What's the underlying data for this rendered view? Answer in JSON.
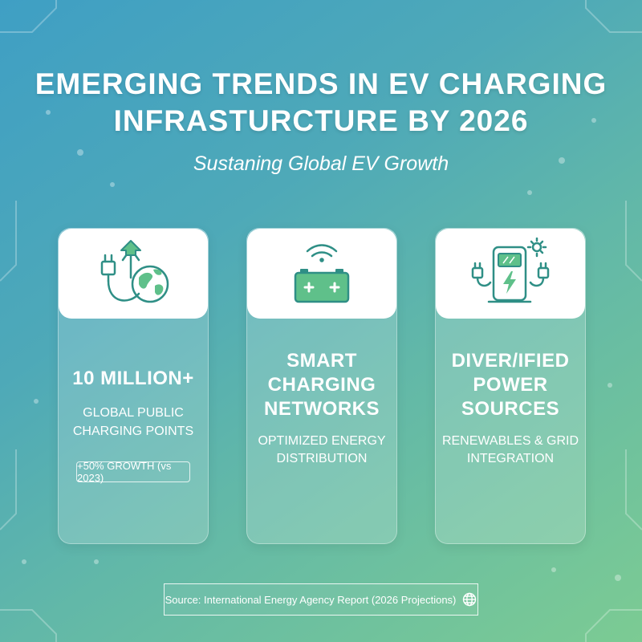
{
  "header": {
    "title_line1": "EMERGING TRENDS IN EV CHARGING",
    "title_line2": "INFRASTURCTURE BY 2026",
    "subtitle": "Sustaning Global EV Growth"
  },
  "cards": [
    {
      "icon": "plug-globe-arrow-icon",
      "headline": "10 MILLION+",
      "label_line1": "GLOBAL PUBLIC",
      "label_line2": "CHARGING POINTS",
      "badge": "+50% GROWTH (vs 2023)"
    },
    {
      "icon": "wireless-battery-icon",
      "headline_line1": "SMART",
      "headline_line2": "CHARGING",
      "headline_line3": "NETWORKS",
      "detail_line1": "OPTIMIZED ENERGY",
      "detail_line2": "DISTRIBUTION"
    },
    {
      "icon": "charging-station-sun-icon",
      "headline_line1": "DIVER/IFIED",
      "headline_line2": "POWER",
      "headline_line3": "SOURCES",
      "detail_line1": "RENEWABLES & GRID",
      "detail_line2": "INTEGRATION"
    }
  ],
  "footer": {
    "source": "Source: International Energy Agency Report (2026 Projections)",
    "icon": "globe-icon"
  },
  "colors": {
    "icon_teal": "#2f8f86",
    "icon_green": "#5fc08a",
    "gradient_start": "#3f9fc4",
    "gradient_end": "#7ccb93"
  }
}
